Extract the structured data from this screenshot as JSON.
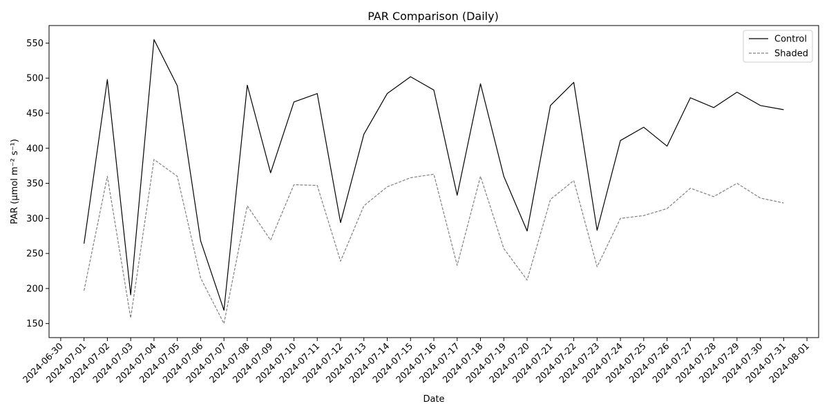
{
  "chart_data": {
    "type": "line",
    "title": "PAR Comparison (Daily)",
    "xlabel": "Date",
    "ylabel": "PAR (μmol m⁻² s⁻¹)",
    "x_tick_labels": [
      "2024-06-30",
      "2024-07-01",
      "2024-07-02",
      "2024-07-03",
      "2024-07-04",
      "2024-07-05",
      "2024-07-06",
      "2024-07-07",
      "2024-07-08",
      "2024-07-09",
      "2024-07-10",
      "2024-07-11",
      "2024-07-12",
      "2024-07-13",
      "2024-07-14",
      "2024-07-15",
      "2024-07-16",
      "2024-07-17",
      "2024-07-18",
      "2024-07-19",
      "2024-07-20",
      "2024-07-21",
      "2024-07-22",
      "2024-07-23",
      "2024-07-24",
      "2024-07-25",
      "2024-07-26",
      "2024-07-27",
      "2024-07-28",
      "2024-07-29",
      "2024-07-30",
      "2024-07-31",
      "2024-08-01"
    ],
    "xlim": [
      "2024-06-30",
      "2024-08-01"
    ],
    "y_ticks": [
      150,
      200,
      250,
      300,
      350,
      400,
      450,
      500,
      550
    ],
    "ylim": [
      130,
      575
    ],
    "grid": false,
    "legend_position": "top-right",
    "x": [
      "2024-07-01",
      "2024-07-02",
      "2024-07-03",
      "2024-07-04",
      "2024-07-05",
      "2024-07-06",
      "2024-07-07",
      "2024-07-08",
      "2024-07-09",
      "2024-07-10",
      "2024-07-11",
      "2024-07-12",
      "2024-07-13",
      "2024-07-14",
      "2024-07-15",
      "2024-07-16",
      "2024-07-17",
      "2024-07-18",
      "2024-07-19",
      "2024-07-20",
      "2024-07-21",
      "2024-07-22",
      "2024-07-23",
      "2024-07-24",
      "2024-07-25",
      "2024-07-26",
      "2024-07-27",
      "2024-07-28",
      "2024-07-29",
      "2024-07-30",
      "2024-07-31"
    ],
    "series": [
      {
        "name": "Control",
        "color": "#000000",
        "line_style": "solid",
        "values": [
          264,
          498,
          191,
          555,
          489,
          268,
          169,
          490,
          365,
          466,
          478,
          294,
          420,
          478,
          502,
          483,
          333,
          492,
          360,
          282,
          461,
          494,
          283,
          411,
          430,
          403,
          472,
          458,
          480,
          461,
          455
        ]
      },
      {
        "name": "Shaded",
        "color": "#808080",
        "line_style": "dashed",
        "values": [
          197,
          360,
          158,
          384,
          360,
          215,
          150,
          318,
          269,
          348,
          347,
          239,
          318,
          345,
          358,
          363,
          233,
          360,
          257,
          212,
          327,
          354,
          231,
          300,
          304,
          314,
          343,
          331,
          350,
          329,
          322
        ]
      }
    ]
  }
}
